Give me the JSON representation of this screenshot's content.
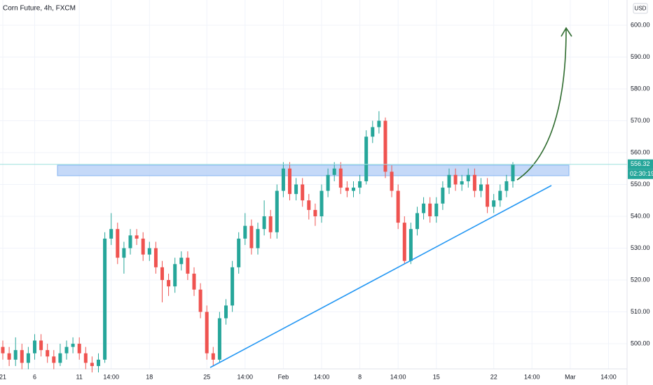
{
  "chart_data": {
    "type": "candlestick",
    "title": "Corn Future, 4h, FXCM",
    "currency": "USD",
    "countdown": "02:30:19",
    "categories": [
      "21",
      null,
      null,
      null,
      null,
      "6",
      null,
      null,
      null,
      null,
      null,
      null,
      "11",
      null,
      null,
      null,
      null,
      "14:00",
      null,
      null,
      null,
      null,
      null,
      "18",
      null,
      null,
      null,
      null,
      null,
      null,
      null,
      null,
      "25",
      null,
      null,
      null,
      null,
      null,
      "14:00",
      null,
      null,
      null,
      null,
      null,
      "Feb",
      null,
      null,
      null,
      null,
      null,
      "14:00",
      null,
      null,
      null,
      null,
      null,
      "8",
      null,
      null,
      null,
      null,
      null,
      "14:00",
      null,
      null,
      null,
      null,
      null,
      "15",
      null,
      null,
      null,
      null,
      null,
      null,
      null,
      null,
      "22",
      null,
      null,
      null,
      null,
      null,
      "14:00",
      null,
      null,
      null,
      null,
      null,
      "Mar",
      null,
      null,
      null,
      null,
      null,
      "14:00"
    ],
    "open": [
      499,
      497,
      495,
      498,
      494,
      497,
      501,
      498,
      496,
      494,
      497,
      499,
      500,
      497,
      494,
      493,
      495,
      533,
      536,
      527,
      530,
      534,
      533,
      528,
      530,
      524,
      520,
      518,
      525,
      527,
      522,
      517,
      510,
      497,
      495,
      508,
      512,
      524,
      533,
      537,
      530,
      536,
      540,
      535,
      548,
      555,
      547,
      550,
      545,
      542,
      540,
      548,
      553,
      555,
      549,
      548,
      549,
      551,
      565,
      568,
      570,
      554,
      548,
      538,
      526,
      536,
      541,
      544,
      540,
      544,
      549,
      553,
      550,
      551,
      553,
      548,
      550,
      543,
      545,
      548,
      551,
      null,
      null,
      null,
      null,
      null,
      null,
      null,
      null,
      null,
      null,
      null,
      null,
      null,
      null,
      null
    ],
    "high": [
      501,
      499,
      502,
      500,
      499,
      503,
      503,
      500,
      498,
      500,
      501,
      502,
      502,
      499,
      496,
      497,
      535,
      541,
      538,
      532,
      536,
      536,
      535,
      532,
      532,
      526,
      522,
      527,
      529,
      529,
      524,
      519,
      512,
      499,
      510,
      514,
      526,
      535,
      541,
      539,
      538,
      545,
      542,
      550,
      557,
      557,
      552,
      552,
      547,
      544,
      550,
      555,
      557,
      557,
      551,
      551,
      553,
      567,
      570,
      573,
      571,
      556,
      550,
      540,
      538,
      543,
      546,
      546,
      546,
      551,
      555,
      555,
      553,
      555,
      555,
      552,
      552,
      547,
      550,
      553,
      557,
      null,
      null,
      null,
      null,
      null,
      null,
      null,
      null,
      null,
      null,
      null,
      null,
      null,
      null,
      null
    ],
    "low": [
      495,
      493,
      493,
      492,
      492,
      495,
      496,
      494,
      492,
      493,
      495,
      497,
      495,
      492,
      491,
      491,
      494,
      531,
      525,
      522,
      528,
      531,
      526,
      526,
      522,
      513,
      515,
      516,
      523,
      520,
      515,
      508,
      495,
      493,
      494,
      506,
      510,
      522,
      531,
      528,
      528,
      534,
      533,
      533,
      546,
      545,
      545,
      543,
      539,
      537,
      538,
      546,
      551,
      547,
      546,
      546,
      547,
      550,
      563,
      566,
      552,
      546,
      536,
      525,
      525,
      534,
      539,
      538,
      538,
      542,
      547,
      548,
      548,
      549,
      546,
      546,
      541,
      541,
      543,
      546,
      549,
      null,
      null,
      null,
      null,
      null,
      null,
      null,
      null,
      null,
      null,
      null,
      null,
      null,
      null,
      null
    ],
    "close": [
      497,
      495,
      498,
      494,
      497,
      501,
      498,
      496,
      494,
      497,
      499,
      500,
      497,
      494,
      493,
      495,
      533,
      536,
      527,
      530,
      534,
      533,
      528,
      530,
      524,
      520,
      518,
      525,
      527,
      522,
      517,
      510,
      497,
      495,
      508,
      512,
      524,
      533,
      537,
      530,
      536,
      540,
      535,
      548,
      555,
      547,
      550,
      545,
      542,
      540,
      548,
      553,
      555,
      549,
      548,
      549,
      551,
      565,
      568,
      570,
      554,
      548,
      538,
      526,
      536,
      541,
      544,
      540,
      544,
      549,
      553,
      550,
      551,
      553,
      548,
      550,
      543,
      545,
      548,
      551,
      556.32,
      null,
      null,
      null,
      null,
      null,
      null,
      null,
      null,
      null,
      null,
      null,
      null,
      null,
      null,
      null
    ],
    "up_color": "#26a69a",
    "down_color": "#ef5350",
    "ylim": [
      492.1,
      607.9
    ],
    "yticks": [
      {
        "value": 500,
        "label": "500.00"
      },
      {
        "value": 510,
        "label": "510.00"
      },
      {
        "value": 520,
        "label": "520.00"
      },
      {
        "value": 530,
        "label": "530.00"
      },
      {
        "value": 540,
        "label": "540.00"
      },
      {
        "value": 550,
        "label": "550.00"
      },
      {
        "value": 560,
        "label": "560.00"
      },
      {
        "value": 570,
        "label": "570.00"
      },
      {
        "value": 580,
        "label": "580.00"
      },
      {
        "value": 590,
        "label": "590.00"
      },
      {
        "value": 600,
        "label": "600.00"
      }
    ],
    "grid": true
  }
}
